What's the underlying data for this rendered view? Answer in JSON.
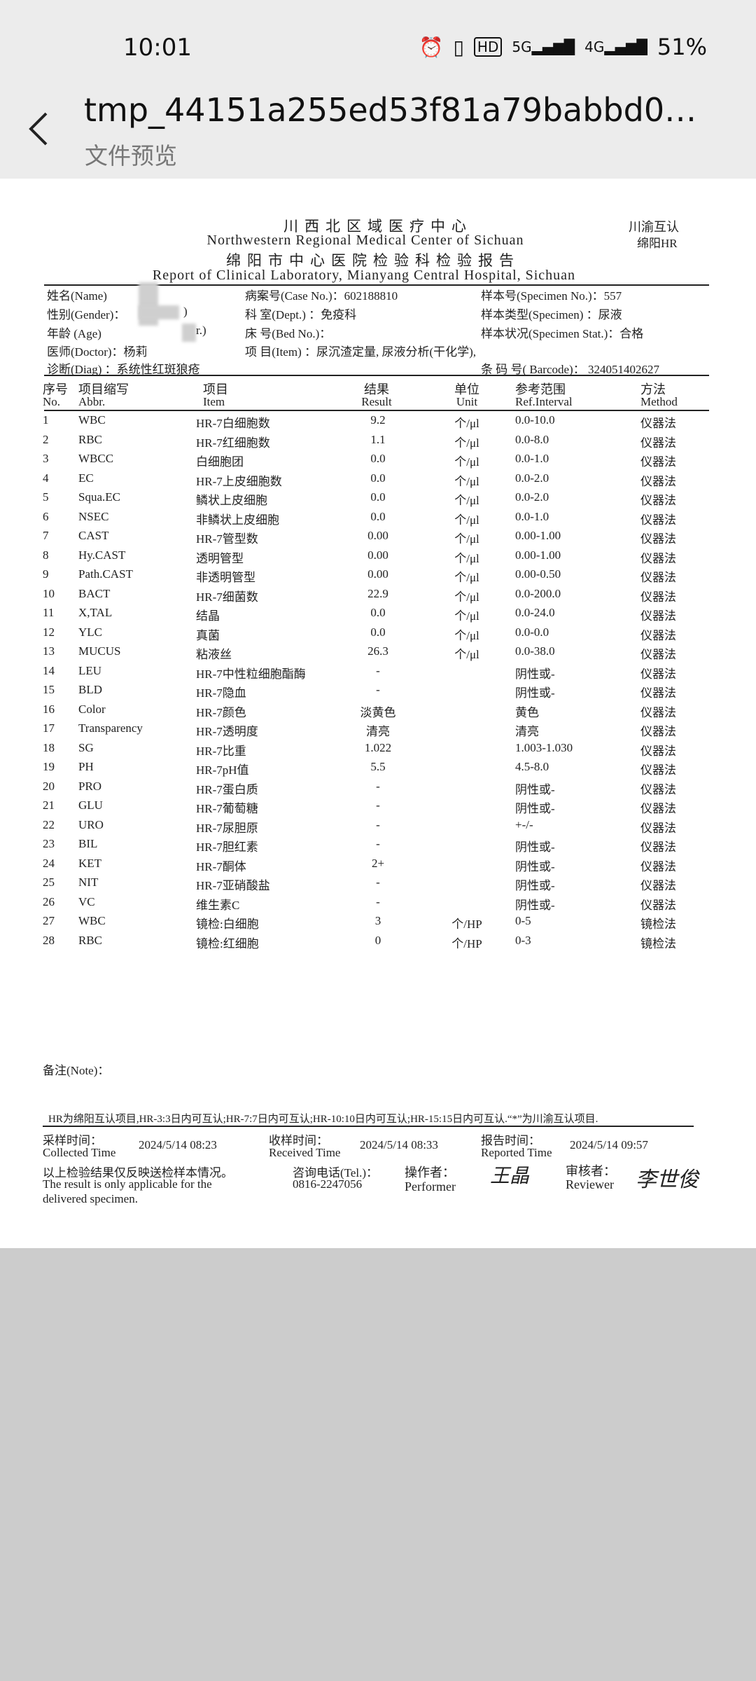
{
  "status_bar": {
    "time": "10:01",
    "battery": "51%",
    "icons": [
      "alarm-icon",
      "vibrate-icon",
      "hd-icon",
      "5g-signal-icon",
      "4g-signal-icon"
    ]
  },
  "app_bar": {
    "title": "tmp_44151a255ed53f81a79babbd0…",
    "subtitle": "文件预览"
  },
  "report": {
    "header": {
      "cn1": "川西北区域医疗中心",
      "en1": "Northwestern Regional Medical Center of Sichuan",
      "cn2": "绵阳市中心医院检验科检验报告",
      "en2": "Report of Clinical Laboratory, Mianyang Central Hospital, Sichuan",
      "badge1": "川渝互认",
      "badge2": "绵阳HR"
    },
    "info": {
      "name_label": "姓名(Name)",
      "gender_label": "性别(Gender)：",
      "gender_tail": ")",
      "age_label": "年龄 (Age)",
      "age_tail": "r.)",
      "doctor": "医师(Doctor)：杨莉",
      "diag": "诊断(Diag)  ：系统性红斑狼疮",
      "case": "病案号(Case No.)：602188810",
      "dept": "科  室(Dept.)  ：免疫科",
      "bed": "床  号(Bed No.)：",
      "item": "项  目(Item)   ：尿沉渣定量, 尿液分析(干化学),",
      "specimen_no": "样本号(Specimen No.)：557",
      "specimen": "样本类型(Specimen)  ：尿液",
      "specimen_stat": "样本状况(Specimen Stat.)：合格",
      "barcode": "条 码 号( Barcode)：  324051402627"
    },
    "columns": [
      {
        "cn": "序号",
        "en": "No."
      },
      {
        "cn": "项目缩写",
        "en": "Abbr."
      },
      {
        "cn": "项目",
        "en": "Item"
      },
      {
        "cn": "结果",
        "en": "Result"
      },
      {
        "cn": "单位",
        "en": "Unit"
      },
      {
        "cn": "参考范围",
        "en": "Ref.Interval"
      },
      {
        "cn": "方法",
        "en": "Method"
      }
    ],
    "rows": [
      [
        "1",
        "WBC",
        "HR-7白细胞数",
        "9.2",
        "个/μl",
        "0.0-10.0",
        "仪器法"
      ],
      [
        "2",
        "RBC",
        "HR-7红细胞数",
        "1.1",
        "个/μl",
        "0.0-8.0",
        "仪器法"
      ],
      [
        "3",
        "WBCC",
        "白细胞团",
        "0.0",
        "个/μl",
        "0.0-1.0",
        "仪器法"
      ],
      [
        "4",
        "EC",
        "HR-7上皮细胞数",
        "0.0",
        "个/μl",
        "0.0-2.0",
        "仪器法"
      ],
      [
        "5",
        "Squa.EC",
        "鳞状上皮细胞",
        "0.0",
        "个/μl",
        "0.0-2.0",
        "仪器法"
      ],
      [
        "6",
        "NSEC",
        "非鳞状上皮细胞",
        "0.0",
        "个/μl",
        "0.0-1.0",
        "仪器法"
      ],
      [
        "7",
        "CAST",
        "HR-7管型数",
        "0.00",
        "个/μl",
        "0.00-1.00",
        "仪器法"
      ],
      [
        "8",
        "Hy.CAST",
        "透明管型",
        "0.00",
        "个/μl",
        "0.00-1.00",
        "仪器法"
      ],
      [
        "9",
        "Path.CAST",
        "非透明管型",
        "0.00",
        "个/μl",
        "0.00-0.50",
        "仪器法"
      ],
      [
        "10",
        "BACT",
        "HR-7细菌数",
        "22.9",
        "个/μl",
        "0.0-200.0",
        "仪器法"
      ],
      [
        "11",
        "X,TAL",
        "结晶",
        "0.0",
        "个/μl",
        "0.0-24.0",
        "仪器法"
      ],
      [
        "12",
        "YLC",
        "真菌",
        "0.0",
        "个/μl",
        "0.0-0.0",
        "仪器法"
      ],
      [
        "13",
        "MUCUS",
        "粘液丝",
        "26.3",
        "个/μl",
        "0.0-38.0",
        "仪器法"
      ],
      [
        "14",
        "LEU",
        "HR-7中性粒细胞酯酶",
        "-",
        "",
        "阴性或-",
        "仪器法"
      ],
      [
        "15",
        "BLD",
        "HR-7隐血",
        "-",
        "",
        "阴性或-",
        "仪器法"
      ],
      [
        "16",
        "Color",
        "HR-7颜色",
        "淡黄色",
        "",
        "黄色",
        "仪器法"
      ],
      [
        "17",
        "Transparency",
        "HR-7透明度",
        "清亮",
        "",
        "清亮",
        "仪器法"
      ],
      [
        "18",
        "SG",
        "HR-7比重",
        "1.022",
        "",
        "1.003-1.030",
        "仪器法"
      ],
      [
        "19",
        "PH",
        "HR-7pH值",
        "5.5",
        "",
        "4.5-8.0",
        "仪器法"
      ],
      [
        "20",
        "PRO",
        "HR-7蛋白质",
        "-",
        "",
        "阴性或-",
        "仪器法"
      ],
      [
        "21",
        "GLU",
        "HR-7葡萄糖",
        "-",
        "",
        "阴性或-",
        "仪器法"
      ],
      [
        "22",
        "URO",
        "HR-7尿胆原",
        "-",
        "",
        "+-/-",
        "仪器法"
      ],
      [
        "23",
        "BIL",
        "HR-7胆红素",
        "-",
        "",
        "阴性或-",
        "仪器法"
      ],
      [
        "24",
        "KET",
        "HR-7酮体",
        "2+",
        "",
        "阴性或-",
        "仪器法"
      ],
      [
        "25",
        "NIT",
        "HR-7亚硝酸盐",
        "-",
        "",
        "阴性或-",
        "仪器法"
      ],
      [
        "26",
        "VC",
        "维生素C",
        "-",
        "",
        "阴性或-",
        "仪器法"
      ],
      [
        "27",
        "WBC",
        "镜检:白细胞",
        "3",
        "个/HP",
        "0-5",
        "镜检法"
      ],
      [
        "28",
        "RBC",
        "镜检:红细胞",
        "0",
        "个/HP",
        "0-3",
        "镜检法"
      ]
    ],
    "note_label": "备注(Note)：",
    "hr_note": "HR为绵阳互认项目,HR-3:3日内可互认;HR-7:7日内可互认;HR-10:10日内可互认;HR-15:15日内可互认.“*”为川渝互认项目.",
    "footer": {
      "collected_cn": "采样时间：",
      "collected_en": "Collected Time",
      "collected": "2024/5/14   08:23",
      "received_cn": "收样时间：",
      "received_en": "Received Time",
      "received": "2024/5/14   08:33",
      "reported_cn": "报告时间：",
      "reported_en": "Reported Time",
      "reported": "2024/5/14    09:57",
      "disclaimer_cn": "以上检验结果仅反映送检样本情况。",
      "disclaimer_en1": "The result is only applicable for the",
      "disclaimer_en2": "delivered specimen.",
      "tel_label": "咨询电话(Tel.)：",
      "tel": "0816-2247056",
      "performer_cn": "操作者：",
      "performer_en": "Performer",
      "performer_sig": "王晶",
      "reviewer_cn": "审核者：",
      "reviewer_en": "Reviewer",
      "reviewer_sig": "李世俊"
    }
  }
}
